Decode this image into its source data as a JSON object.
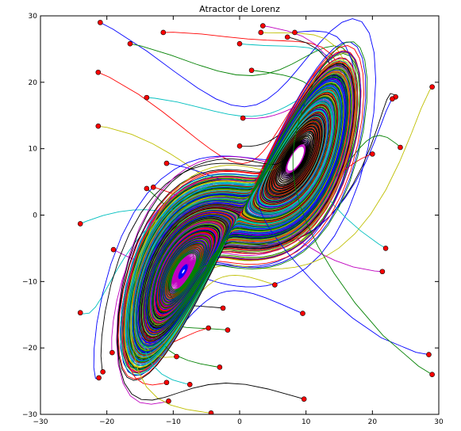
{
  "chart_data": {
    "type": "line",
    "title": "Atractor de Lorenz",
    "xlabel": "",
    "ylabel": "",
    "xlim": [
      -30,
      30
    ],
    "ylim": [
      -30,
      30
    ],
    "xticks": [
      -30,
      -20,
      -10,
      0,
      10,
      20,
      30
    ],
    "yticks": [
      -30,
      -20,
      -10,
      0,
      10,
      20,
      30
    ],
    "x_tick_labels": [
      "−30",
      "−20",
      "−10",
      "0",
      "10",
      "20",
      "30"
    ],
    "y_tick_labels": [
      "−30",
      "−20",
      "−10",
      "0",
      "10",
      "20",
      "30"
    ],
    "grid": false,
    "legend": "none",
    "series_colors": [
      "#0000ff",
      "#008000",
      "#ff0000",
      "#00bfbf",
      "#bf00bf",
      "#bfbf00",
      "#000000"
    ],
    "initial_point_color": "#ff0000",
    "initial_points": [
      [
        -21,
        29
      ],
      [
        -16.5,
        25.8
      ],
      [
        -11.5,
        27.5
      ],
      [
        0,
        25.8
      ],
      [
        3.5,
        28.5
      ],
      [
        3.2,
        27.5
      ],
      [
        7.2,
        26.8
      ],
      [
        8.3,
        27.5
      ],
      [
        1.8,
        21.8
      ],
      [
        -21.3,
        21.5
      ],
      [
        -14,
        17.7
      ],
      [
        0.5,
        14.6
      ],
      [
        -21.3,
        13.4
      ],
      [
        0,
        10.4
      ],
      [
        -11,
        7.8
      ],
      [
        -14,
        4
      ],
      [
        -13,
        4.2
      ],
      [
        -24,
        -1.3
      ],
      [
        -19,
        -5.2
      ],
      [
        29,
        19.3
      ],
      [
        23.5,
        17.8
      ],
      [
        23,
        17.5
      ],
      [
        24.2,
        10.2
      ],
      [
        20,
        9.2
      ],
      [
        22,
        -5
      ],
      [
        21.5,
        -8.5
      ],
      [
        5.3,
        -10.5
      ],
      [
        -2.5,
        -14
      ],
      [
        9.5,
        -14.8
      ],
      [
        -1.8,
        -17.3
      ],
      [
        -4.7,
        -17
      ],
      [
        -24,
        -14.7
      ],
      [
        -19.2,
        -20.7
      ],
      [
        -9.5,
        -21.3
      ],
      [
        -20.6,
        -23.6
      ],
      [
        -21.2,
        -24.5
      ],
      [
        -3,
        -22.9
      ],
      [
        -11,
        -25.2
      ],
      [
        -7.5,
        -25.5
      ],
      [
        -10.7,
        -28
      ],
      [
        -4.3,
        -29.8
      ],
      [
        9.7,
        -27.7
      ],
      [
        28.5,
        -21
      ],
      [
        29,
        -24
      ]
    ]
  }
}
